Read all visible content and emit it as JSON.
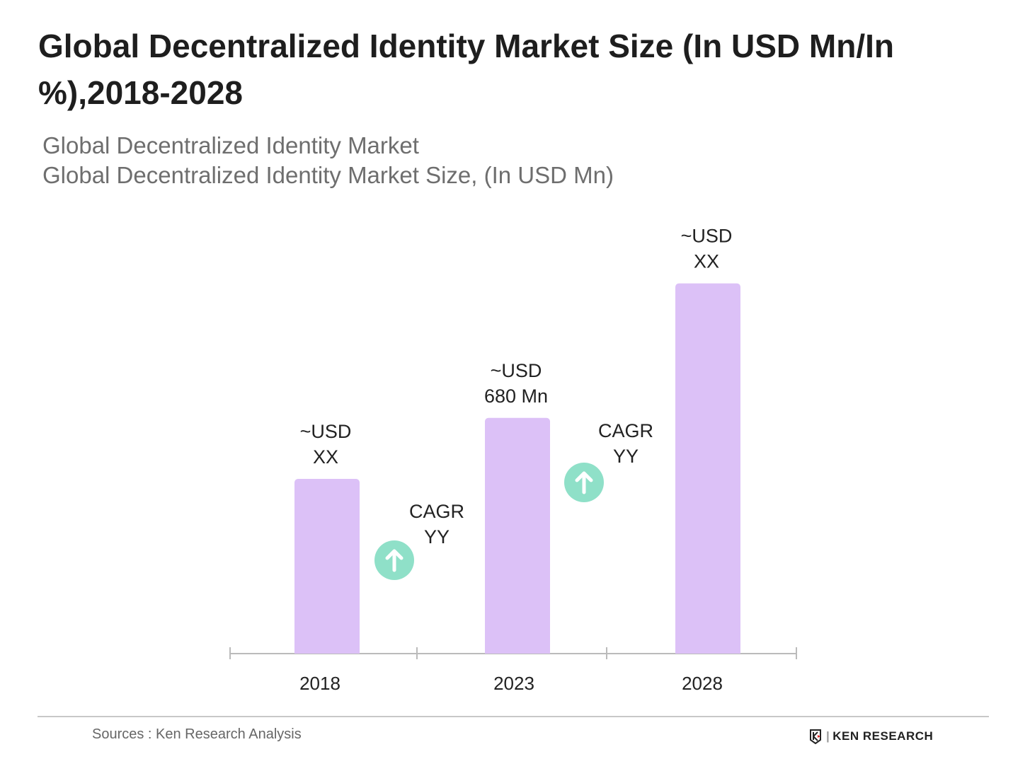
{
  "header": {
    "title": "Global Decentralized Identity Market Size (In USD Mn/In %),2018-2028",
    "subtitle_1": "Global Decentralized Identity Market",
    "subtitle_2": "Global Decentralized Identity Market  Size, (In USD Mn)"
  },
  "chart_data": {
    "type": "bar",
    "categories": [
      "2018",
      "2023",
      "2028"
    ],
    "values": [
      504,
      680,
      1068
    ],
    "data_labels": [
      [
        "~USD",
        "XX"
      ],
      [
        "~USD",
        "680 Mn"
      ],
      [
        "~USD",
        "XX"
      ]
    ],
    "annotations": [
      {
        "between": [
          "2018",
          "2023"
        ],
        "lines": [
          "CAGR",
          "YY"
        ],
        "icon": "arrow-up-circle-icon"
      },
      {
        "between": [
          "2023",
          "2028"
        ],
        "lines": [
          "CAGR",
          "YY"
        ],
        "icon": "arrow-up-circle-icon"
      }
    ],
    "ylim": [
      0,
      1100
    ],
    "grid": false,
    "colors": {
      "bar": "#dcc1f7",
      "cagr_icon": "#8fe0c8",
      "axis": "#bbbbbb"
    }
  },
  "footer": {
    "source": "Sources : Ken Research Analysis",
    "logo_text": "KEN RESEARCH"
  }
}
